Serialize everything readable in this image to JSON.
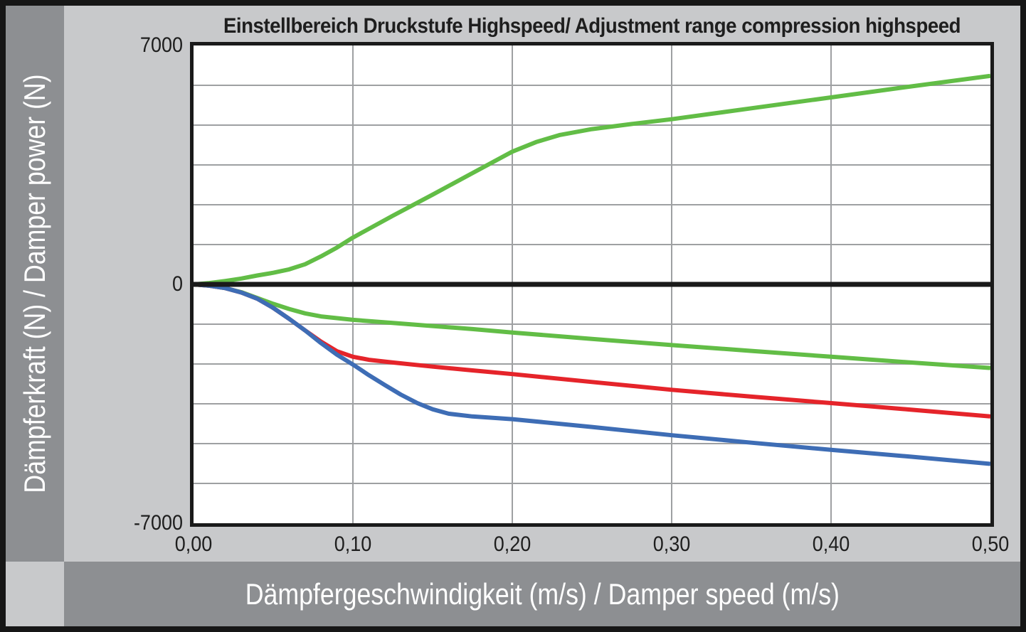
{
  "colors": {
    "frame": "#161616",
    "canvas": "#C8C9CB",
    "axis_strip": "#8D8F92",
    "plot_background": "#FFFFFF",
    "grid": "#9EA0A2",
    "axis_line": "#1A1A1A",
    "tick_text": "#1E1E1E",
    "strip_text": "#FFFFFF",
    "series_green": "#62BD46",
    "series_red": "#E5242A",
    "series_blue": "#3E6DB5"
  },
  "chart_data": {
    "type": "line",
    "title": "Einstellbereich Druckstufe Highspeed/ Adjustment range compression highspeed",
    "xlabel": "Dämpfergeschwindigkeit (m/s) / Damper speed (m/s)",
    "ylabel": "Dämpferkraft (N) / Damper power (N)",
    "xlim": [
      0,
      0.5
    ],
    "ylim": [
      -7000,
      7000
    ],
    "x_tick_values": [
      0,
      0.1,
      0.2,
      0.3,
      0.4,
      0.5
    ],
    "x_tick_labels": [
      "0,00",
      "0,10",
      "0,20",
      "0,30",
      "0,40",
      "0,50"
    ],
    "y_tick_values": [
      7000,
      0,
      -7000
    ],
    "y_tick_labels": [
      "7000",
      "0",
      "-7000"
    ],
    "grid": {
      "x_step": 0.1,
      "y_divisions": 12,
      "visible": true
    },
    "legend": "none",
    "series": [
      {
        "name": "green-upper-compression",
        "color": "#62BD46",
        "x": [
          0,
          0.01,
          0.02,
          0.03,
          0.04,
          0.05,
          0.06,
          0.07,
          0.08,
          0.09,
          0.1,
          0.125,
          0.15,
          0.175,
          0.2,
          0.215,
          0.23,
          0.25,
          0.275,
          0.3,
          0.35,
          0.4,
          0.45,
          0.5
        ],
        "y": [
          0,
          40,
          100,
          170,
          260,
          340,
          440,
          590,
          820,
          1080,
          1370,
          2010,
          2630,
          3260,
          3890,
          4170,
          4380,
          4550,
          4700,
          4840,
          5160,
          5480,
          5800,
          6110
        ]
      },
      {
        "name": "green-lower",
        "color": "#62BD46",
        "x": [
          0,
          0.01,
          0.02,
          0.03,
          0.04,
          0.05,
          0.06,
          0.07,
          0.08,
          0.1,
          0.125,
          0.15,
          0.175,
          0.2,
          0.25,
          0.3,
          0.35,
          0.4,
          0.45,
          0.5
        ],
        "y": [
          0,
          -40,
          -110,
          -230,
          -400,
          -570,
          -720,
          -850,
          -940,
          -1040,
          -1130,
          -1220,
          -1310,
          -1410,
          -1600,
          -1780,
          -1950,
          -2120,
          -2290,
          -2450
        ]
      },
      {
        "name": "red-lower",
        "color": "#E5242A",
        "x": [
          0,
          0.01,
          0.02,
          0.03,
          0.04,
          0.05,
          0.06,
          0.07,
          0.08,
          0.09,
          0.1,
          0.11,
          0.125,
          0.15,
          0.175,
          0.2,
          0.25,
          0.3,
          0.35,
          0.4,
          0.45,
          0.5
        ],
        "y": [
          0,
          -40,
          -110,
          -240,
          -420,
          -690,
          -1010,
          -1350,
          -1680,
          -1960,
          -2120,
          -2210,
          -2290,
          -2410,
          -2520,
          -2630,
          -2860,
          -3090,
          -3290,
          -3480,
          -3670,
          -3870
        ]
      },
      {
        "name": "blue-lower",
        "color": "#3E6DB5",
        "x": [
          0,
          0.01,
          0.02,
          0.03,
          0.04,
          0.05,
          0.06,
          0.07,
          0.08,
          0.09,
          0.1,
          0.11,
          0.12,
          0.13,
          0.14,
          0.15,
          0.16,
          0.175,
          0.2,
          0.25,
          0.3,
          0.35,
          0.4,
          0.45,
          0.5
        ],
        "y": [
          0,
          -40,
          -110,
          -240,
          -420,
          -690,
          -1010,
          -1350,
          -1720,
          -2060,
          -2350,
          -2660,
          -2950,
          -3230,
          -3470,
          -3660,
          -3790,
          -3870,
          -3950,
          -4180,
          -4420,
          -4640,
          -4850,
          -5050,
          -5260
        ]
      }
    ]
  }
}
